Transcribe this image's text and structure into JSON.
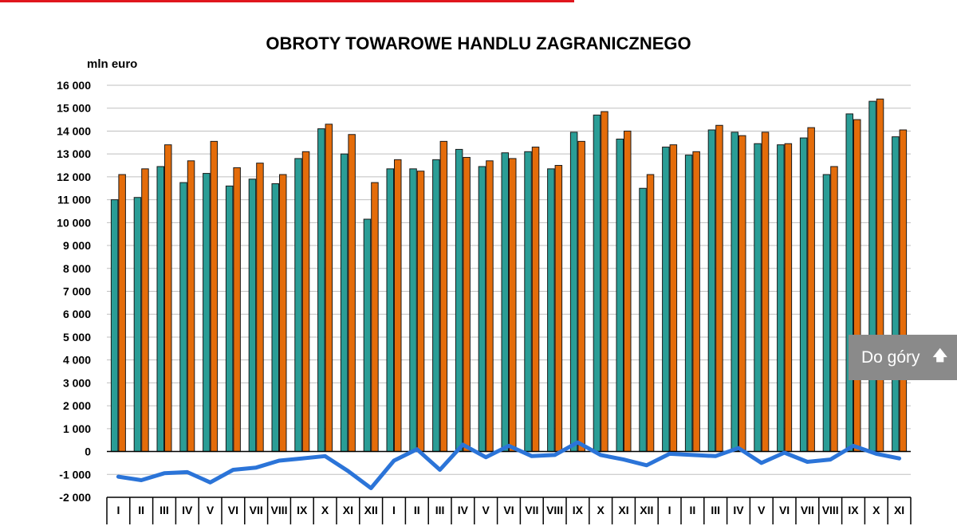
{
  "chart_data": {
    "type": "bar",
    "title": "OBROTY TOWAROWE HANDLU ZAGRANICZNEGO",
    "ylabel": "mln euro",
    "xlabel": "",
    "ylim": [
      -2000,
      16000
    ],
    "yticks": [
      -2000,
      -1000,
      0,
      1000,
      2000,
      3000,
      4000,
      5000,
      6000,
      7000,
      8000,
      9000,
      10000,
      11000,
      12000,
      13000,
      14000,
      15000,
      16000
    ],
    "ytick_labels": [
      "-2 000",
      "-1 000",
      "0",
      "1 000",
      "2 000",
      "3 000",
      "4 000",
      "5 000",
      "6 000",
      "7 000",
      "8 000",
      "9 000",
      "10 000",
      "11 000",
      "12 000",
      "13 000",
      "14 000",
      "15 000",
      "16 000"
    ],
    "grid": true,
    "legend": "none",
    "categories": [
      "I",
      "II",
      "III",
      "IV",
      "V",
      "VI",
      "VII",
      "VIII",
      "IX",
      "X",
      "XI",
      "XII",
      "I",
      "II",
      "III",
      "IV",
      "V",
      "VI",
      "VII",
      "VIII",
      "IX",
      "X",
      "XI",
      "XII",
      "I",
      "II",
      "III",
      "IV",
      "V",
      "VI",
      "VII",
      "VIII",
      "IX",
      "X",
      "XI"
    ],
    "series": [
      {
        "type": "bar",
        "color": "#2a9d96",
        "values": [
          11000,
          11100,
          12450,
          11750,
          12150,
          11600,
          11900,
          11700,
          12800,
          14100,
          13000,
          10150,
          12350,
          12350,
          12750,
          13200,
          12450,
          13050,
          13100,
          12350,
          13950,
          14700,
          13650,
          11500,
          13300,
          12950,
          14050,
          13950,
          13450,
          13400,
          13700,
          12100,
          14750,
          15300,
          13750
        ]
      },
      {
        "type": "bar",
        "color": "#e46c0a",
        "values": [
          12100,
          12350,
          13400,
          12700,
          13550,
          12400,
          12600,
          12100,
          13100,
          14300,
          13850,
          11750,
          12750,
          12250,
          13550,
          12850,
          12700,
          12800,
          13300,
          12500,
          13550,
          14850,
          14000,
          12100,
          13400,
          13100,
          14250,
          13800,
          13950,
          13450,
          14150,
          12450,
          14500,
          15400,
          14050
        ]
      },
      {
        "type": "line",
        "color": "#2b74d8",
        "values": [
          -1100,
          -1250,
          -950,
          -900,
          -1350,
          -800,
          -700,
          -400,
          -300,
          -200,
          -850,
          -1600,
          -400,
          100,
          -800,
          300,
          -250,
          250,
          -200,
          -150,
          400,
          -150,
          -350,
          -600,
          -100,
          -150,
          -200,
          150,
          -500,
          -50,
          -450,
          -350,
          250,
          -100,
          -300
        ]
      }
    ]
  },
  "ui": {
    "back_to_top_label": "Do góry",
    "back_to_top_icon": "arrow-up-icon",
    "accent_color": "#e0161d"
  }
}
